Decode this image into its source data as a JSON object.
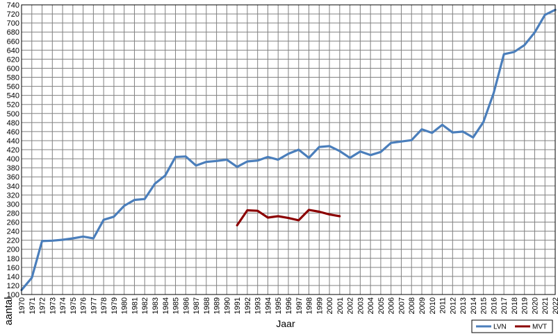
{
  "chart_data": {
    "type": "line",
    "title": "",
    "xlabel": "Jaar",
    "ylabel": "aantal",
    "ylim": [
      100,
      740
    ],
    "ytick_step": 20,
    "grid": true,
    "legend_position": "bottom-right",
    "x": [
      1970,
      1971,
      1972,
      1973,
      1974,
      1975,
      1976,
      1977,
      1978,
      1979,
      1980,
      1981,
      1982,
      1983,
      1984,
      1985,
      1986,
      1987,
      1988,
      1989,
      1990,
      1991,
      1992,
      1993,
      1994,
      1995,
      1996,
      1997,
      1998,
      1999,
      2000,
      2001,
      2002,
      2003,
      2004,
      2005,
      2006,
      2007,
      2008,
      2009,
      2010,
      2011,
      2012,
      2013,
      2014,
      2015,
      2016,
      2017,
      2018,
      2019,
      2020,
      2021,
      2022
    ],
    "series": [
      {
        "name": "LVN",
        "color": "#4a7ebb",
        "x": [
          1970,
          1971,
          1972,
          1973,
          1974,
          1975,
          1976,
          1977,
          1978,
          1979,
          1980,
          1981,
          1982,
          1983,
          1984,
          1985,
          1986,
          1987,
          1988,
          1989,
          1990,
          1991,
          1992,
          1993,
          1994,
          1995,
          1996,
          1997,
          1998,
          1999,
          2000,
          2001,
          2002,
          2003,
          2004,
          2005,
          2006,
          2007,
          2008,
          2009,
          2010,
          2011,
          2012,
          2013,
          2014,
          2015,
          2016,
          2017,
          2018,
          2019,
          2020,
          2021,
          2022
        ],
        "values": [
          110,
          137,
          218,
          219,
          221,
          224,
          228,
          224,
          265,
          272,
          296,
          309,
          311,
          345,
          363,
          404,
          405,
          385,
          393,
          395,
          398,
          382,
          394,
          396,
          404,
          398,
          411,
          420,
          402,
          426,
          428,
          417,
          402,
          416,
          408,
          415,
          435,
          438,
          441,
          465,
          457,
          475,
          458,
          460,
          447,
          481,
          545,
          631,
          636,
          651,
          679,
          718,
          729
        ]
      },
      {
        "name": "MVT",
        "color": "#8b0000",
        "x": [
          1991,
          1992,
          1993,
          1994,
          1995,
          1996,
          1997,
          1998,
          1999,
          2000,
          2001
        ],
        "values": [
          253,
          286,
          285,
          270,
          273,
          269,
          264,
          287,
          283,
          277,
          273
        ]
      }
    ]
  }
}
